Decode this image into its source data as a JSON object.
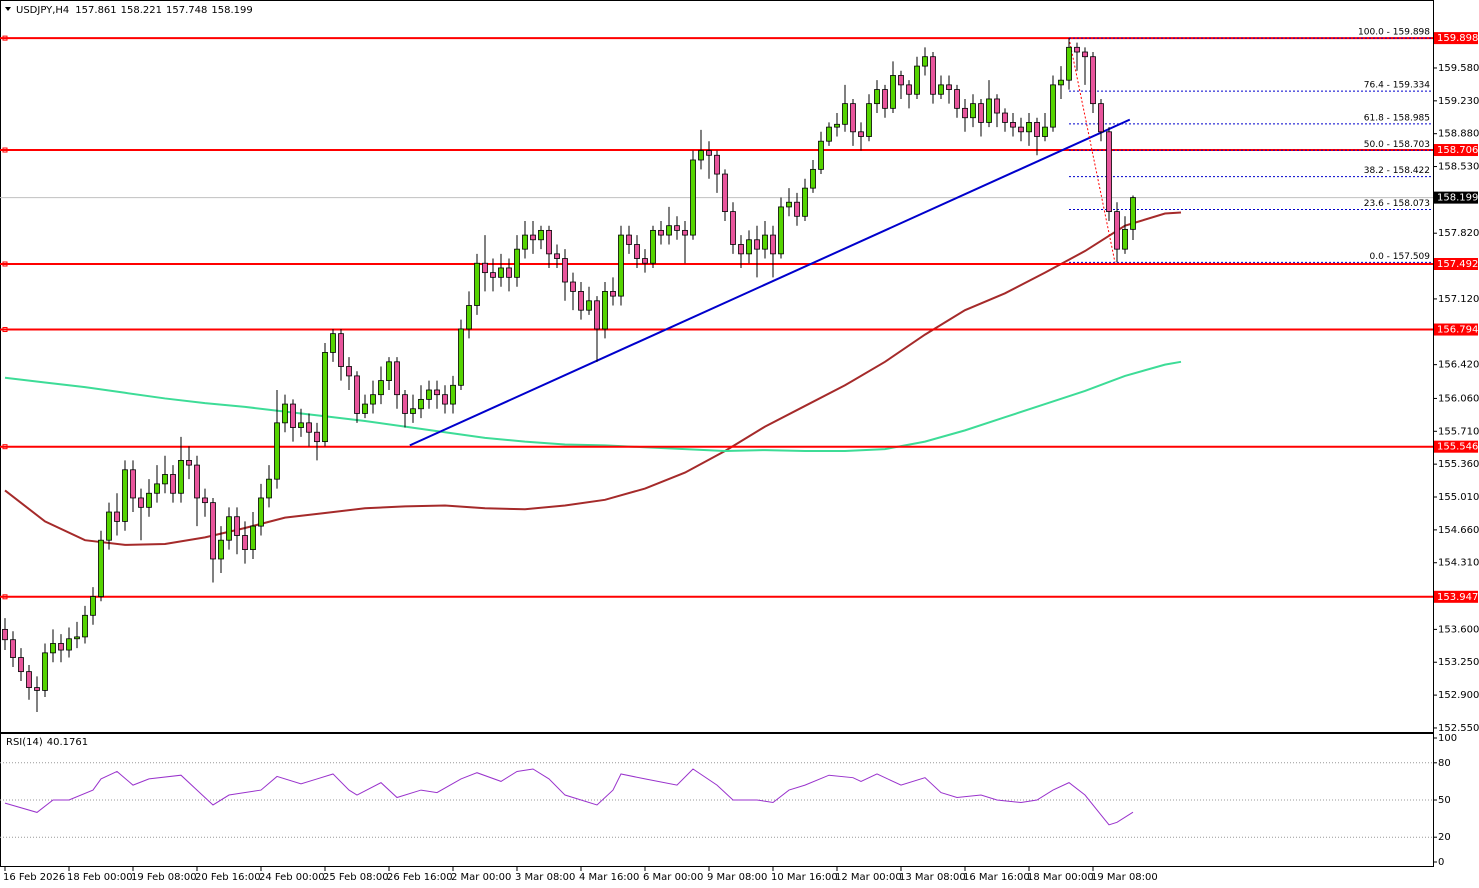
{
  "chart_data": {
    "type": "candlestick",
    "title": "USDJPY,H4",
    "bull_color": "#55d400",
    "bear_color": "#e8559c",
    "open": [
      153.6,
      153.49,
      153.3,
      153.15,
      152.98,
      152.95,
      153.35,
      153.45,
      153.38,
      153.5,
      153.52,
      153.75,
      153.95,
      154.55,
      154.85,
      154.75,
      155.3,
      155.0,
      154.9,
      155.05,
      155.15,
      155.25,
      155.05,
      155.4,
      155.35,
      155.0,
      154.95,
      154.35,
      154.55,
      154.8,
      154.6,
      154.45,
      154.7,
      155.0,
      155.2,
      155.8,
      156.0,
      155.75,
      155.8,
      155.7,
      155.6,
      156.55,
      156.75,
      156.4,
      156.3,
      155.9,
      156.0,
      156.1,
      156.25,
      156.45,
      156.1,
      155.9,
      155.95,
      156.05,
      156.15,
      156.1,
      156.0,
      156.2,
      156.8,
      157.05,
      157.5,
      157.4,
      157.35,
      157.45,
      157.35,
      157.65,
      157.8,
      157.75,
      157.85,
      157.6,
      157.55,
      157.3,
      157.2,
      157.0,
      157.1,
      156.8,
      157.2,
      157.15,
      157.8,
      157.7,
      157.55,
      157.5,
      157.85,
      157.8,
      157.9,
      157.85,
      157.8,
      158.6,
      158.7,
      158.65,
      158.45,
      158.05,
      157.7,
      157.6,
      157.75,
      157.65,
      157.8,
      157.6,
      158.1,
      158.15,
      158.0,
      158.3,
      158.5,
      158.8,
      158.95,
      158.98,
      159.2,
      158.9,
      158.85,
      159.2,
      159.35,
      159.15,
      159.5,
      159.4,
      159.3,
      159.6,
      159.7,
      159.3,
      159.4,
      159.35,
      159.15,
      159.05,
      159.2,
      159.0,
      159.25,
      159.1,
      159.0,
      158.95,
      158.9,
      159.0,
      158.85,
      158.95,
      159.4,
      159.45,
      159.8,
      159.75,
      159.7,
      159.2,
      158.9,
      158.05,
      157.65,
      157.861
    ],
    "high": [
      153.72,
      153.58,
      153.4,
      153.22,
      153.1,
      153.45,
      153.6,
      153.55,
      153.62,
      153.68,
      153.85,
      154.05,
      154.65,
      154.95,
      155.05,
      155.4,
      155.4,
      155.1,
      155.2,
      155.35,
      155.45,
      155.35,
      155.65,
      155.55,
      155.45,
      155.1,
      155.0,
      154.7,
      154.9,
      154.9,
      154.75,
      154.85,
      155.15,
      155.35,
      156.15,
      156.1,
      156.05,
      155.95,
      155.9,
      155.8,
      156.65,
      156.8,
      156.8,
      156.5,
      156.35,
      156.1,
      156.25,
      156.4,
      156.5,
      156.5,
      156.15,
      156.1,
      156.2,
      156.25,
      156.25,
      156.2,
      156.3,
      156.9,
      157.2,
      157.6,
      157.8,
      157.55,
      157.6,
      157.55,
      157.8,
      157.95,
      157.95,
      157.9,
      157.9,
      157.7,
      157.65,
      157.4,
      157.3,
      157.25,
      157.15,
      157.3,
      157.35,
      157.9,
      157.9,
      157.8,
      157.65,
      157.9,
      157.95,
      158.1,
      158.0,
      157.95,
      158.7,
      158.92,
      158.8,
      158.7,
      158.5,
      158.15,
      157.8,
      157.85,
      157.9,
      157.95,
      157.9,
      158.2,
      158.3,
      158.25,
      158.4,
      158.6,
      158.9,
      159.0,
      159.1,
      159.4,
      159.25,
      159.0,
      159.3,
      159.45,
      159.4,
      159.65,
      159.55,
      159.45,
      159.7,
      159.8,
      159.75,
      159.5,
      159.5,
      159.4,
      159.25,
      159.3,
      159.25,
      159.45,
      159.3,
      159.15,
      159.1,
      159.05,
      159.1,
      159.05,
      159.1,
      159.5,
      159.6,
      159.898,
      159.85,
      159.8,
      159.75,
      159.25,
      158.95,
      158.15,
      158.0,
      158.221
    ],
    "low": [
      153.38,
      153.2,
      153.05,
      152.85,
      152.72,
      152.88,
      153.25,
      153.25,
      153.3,
      153.4,
      153.45,
      153.65,
      153.9,
      154.45,
      154.6,
      154.65,
      154.85,
      154.55,
      154.8,
      154.95,
      155.05,
      154.95,
      154.95,
      155.2,
      154.7,
      154.8,
      154.1,
      154.2,
      154.45,
      154.4,
      154.3,
      154.35,
      154.6,
      154.9,
      155.1,
      155.7,
      155.6,
      155.65,
      155.55,
      155.4,
      155.55,
      156.45,
      156.25,
      156.15,
      155.8,
      155.85,
      155.9,
      156.0,
      156.15,
      155.95,
      155.75,
      155.8,
      155.85,
      155.95,
      155.95,
      155.9,
      155.9,
      156.15,
      156.7,
      156.95,
      157.2,
      157.2,
      157.25,
      157.2,
      157.25,
      157.55,
      157.6,
      157.65,
      157.45,
      157.45,
      157.1,
      157.0,
      156.9,
      156.95,
      156.45,
      156.7,
      157.05,
      157.05,
      157.6,
      157.45,
      157.4,
      157.45,
      157.7,
      157.7,
      157.75,
      157.5,
      157.75,
      158.5,
      158.4,
      158.25,
      157.95,
      157.6,
      157.45,
      157.5,
      157.35,
      157.55,
      157.35,
      157.55,
      158.0,
      157.9,
      157.95,
      158.25,
      158.45,
      158.75,
      158.85,
      158.9,
      158.75,
      158.7,
      158.8,
      159.1,
      159.05,
      159.1,
      159.25,
      159.15,
      159.25,
      159.5,
      159.2,
      159.25,
      159.2,
      159.05,
      158.9,
      158.95,
      158.85,
      158.95,
      158.95,
      158.9,
      158.85,
      158.8,
      158.75,
      158.65,
      158.8,
      158.9,
      159.25,
      159.35,
      159.55,
      159.4,
      159.1,
      158.8,
      157.95,
      157.509,
      157.6,
      157.748
    ],
    "close": [
      153.49,
      153.3,
      153.15,
      152.98,
      152.95,
      153.35,
      153.45,
      153.38,
      153.5,
      153.52,
      153.75,
      153.95,
      154.55,
      154.85,
      154.75,
      155.3,
      155.0,
      154.9,
      155.05,
      155.15,
      155.25,
      155.05,
      155.4,
      155.35,
      155.0,
      154.95,
      154.35,
      154.55,
      154.8,
      154.6,
      154.45,
      154.7,
      155.0,
      155.2,
      155.8,
      156.0,
      155.75,
      155.8,
      155.7,
      155.6,
      156.55,
      156.75,
      156.4,
      156.3,
      155.9,
      156.0,
      156.1,
      156.25,
      156.45,
      156.1,
      155.9,
      155.95,
      156.05,
      156.15,
      156.1,
      156.0,
      156.2,
      156.8,
      157.05,
      157.5,
      157.4,
      157.35,
      157.45,
      157.35,
      157.65,
      157.8,
      157.75,
      157.85,
      157.6,
      157.55,
      157.3,
      157.2,
      157.0,
      157.1,
      156.8,
      157.2,
      157.15,
      157.8,
      157.7,
      157.55,
      157.5,
      157.85,
      157.8,
      157.9,
      157.85,
      157.8,
      158.6,
      158.7,
      158.65,
      158.45,
      158.05,
      157.7,
      157.6,
      157.75,
      157.65,
      157.8,
      157.6,
      158.1,
      158.15,
      158.0,
      158.3,
      158.5,
      158.8,
      158.95,
      158.98,
      159.2,
      158.9,
      158.85,
      159.2,
      159.35,
      159.15,
      159.5,
      159.4,
      159.3,
      159.6,
      159.7,
      159.3,
      159.4,
      159.35,
      159.15,
      159.05,
      159.2,
      159.0,
      159.25,
      159.1,
      159.0,
      158.95,
      158.9,
      159.0,
      158.85,
      158.95,
      159.4,
      159.45,
      159.8,
      159.75,
      159.7,
      159.2,
      158.9,
      158.05,
      157.65,
      157.861,
      158.199
    ],
    "xlim": [
      -0.625,
      178.5
    ],
    "xticks": [
      {
        "value": 0,
        "label": "16 Feb 2026"
      },
      {
        "value": 8,
        "label": "18 Feb 00:00"
      },
      {
        "value": 16,
        "label": "19 Feb 08:00"
      },
      {
        "value": 24,
        "label": "20 Feb 16:00"
      },
      {
        "value": 32,
        "label": "24 Feb 00:00"
      },
      {
        "value": 40,
        "label": "25 Feb 08:00"
      },
      {
        "value": 48,
        "label": "26 Feb 16:00"
      },
      {
        "value": 56,
        "label": "2 Mar 00:00"
      },
      {
        "value": 64,
        "label": "3 Mar 08:00"
      },
      {
        "value": 72,
        "label": "4 Mar 16:00"
      },
      {
        "value": 80,
        "label": "6 Mar 00:00"
      },
      {
        "value": 88,
        "label": "9 Mar 08:00"
      },
      {
        "value": 96,
        "label": "10 Mar 16:00"
      },
      {
        "value": 104,
        "label": "12 Mar 00:00"
      },
      {
        "value": 112,
        "label": "13 Mar 08:00"
      },
      {
        "value": 120,
        "label": "16 Mar 16:00"
      },
      {
        "value": 128,
        "label": "18 Mar 00:00"
      },
      {
        "value": 136,
        "label": "19 Mar 08:00"
      }
    ],
    "ylim": [
      152.507,
      160.304
    ],
    "yticks": [
      {
        "value": 159.58,
        "label": "159.580"
      },
      {
        "value": 159.23,
        "label": "159.230"
      },
      {
        "value": 158.88,
        "label": "158.880"
      },
      {
        "value": 158.53,
        "label": "158.530"
      },
      {
        "value": 157.82,
        "label": "157.820"
      },
      {
        "value": 157.12,
        "label": "157.120"
      },
      {
        "value": 156.42,
        "label": "156.420"
      },
      {
        "value": 156.06,
        "label": "156.060"
      },
      {
        "value": 155.71,
        "label": "155.710"
      },
      {
        "value": 155.36,
        "label": "155.360"
      },
      {
        "value": 155.01,
        "label": "155.010"
      },
      {
        "value": 154.66,
        "label": "154.660"
      },
      {
        "value": 154.31,
        "label": "154.310"
      },
      {
        "value": 153.6,
        "label": "153.600"
      },
      {
        "value": 153.25,
        "label": "153.250"
      },
      {
        "value": 152.9,
        "label": "152.900"
      },
      {
        "value": 152.55,
        "label": "152.550"
      }
    ],
    "levels": {
      "color": "#ff0000",
      "values": [
        159.898,
        158.706,
        157.492,
        156.794,
        155.546,
        153.947
      ]
    },
    "series": [
      {
        "color": "#a52a2a",
        "x": [
          0,
          5,
          10,
          15,
          20,
          25,
          30,
          35,
          40,
          45,
          50,
          55,
          60,
          65,
          70,
          75,
          80,
          85,
          90,
          95,
          100,
          105,
          110,
          115,
          120,
          125,
          130,
          135,
          140,
          145,
          147
        ],
        "values": [
          155.08,
          154.75,
          154.55,
          154.5,
          154.51,
          154.58,
          154.68,
          154.79,
          154.84,
          154.89,
          154.91,
          154.92,
          154.89,
          154.88,
          154.92,
          154.98,
          155.1,
          155.27,
          155.5,
          155.76,
          155.98,
          156.2,
          156.45,
          156.74,
          157.0,
          157.18,
          157.4,
          157.63,
          157.9,
          158.03,
          158.04
        ]
      },
      {
        "color": "#3ddc97",
        "x": [
          0,
          5,
          10,
          15,
          20,
          25,
          30,
          35,
          40,
          45,
          50,
          55,
          60,
          65,
          70,
          75,
          80,
          85,
          90,
          95,
          100,
          105,
          110,
          115,
          120,
          125,
          130,
          135,
          140,
          145,
          147
        ],
        "values": [
          156.28,
          156.23,
          156.18,
          156.12,
          156.06,
          156.01,
          155.97,
          155.92,
          155.87,
          155.82,
          155.76,
          155.7,
          155.64,
          155.6,
          155.57,
          155.56,
          155.54,
          155.52,
          155.5,
          155.51,
          155.5,
          155.5,
          155.52,
          155.6,
          155.72,
          155.86,
          156.0,
          156.14,
          156.3,
          156.42,
          156.45
        ]
      }
    ],
    "trendline": {
      "color": "#0000cc",
      "x": [
        50.6,
        140.6
      ],
      "values": [
        155.56,
        159.03
      ]
    },
    "fibonacci": {
      "color": "#ff0000",
      "level_color": "#0000cc",
      "x": [
        133,
        138.75
      ],
      "values": [
        159.898,
        157.509
      ],
      "levels": [
        {
          "value": 159.898,
          "label": "100.0 - 159.898"
        },
        {
          "value": 159.334,
          "label": "76.4 - 159.334"
        },
        {
          "value": 158.985,
          "label": "61.8 - 158.985"
        },
        {
          "value": 158.703,
          "label": "50.0 - 158.703"
        },
        {
          "value": 158.422,
          "label": "38.2 - 158.422"
        },
        {
          "value": 158.073,
          "label": "23.6 - 158.073"
        },
        {
          "value": 157.509,
          "label": "0.0 - 157.509"
        }
      ]
    },
    "rsi": {
      "title": "RSI(14)",
      "color": "#9932cc",
      "ylim": [
        0,
        100
      ],
      "yticks": [
        100,
        80,
        50,
        20,
        0
      ],
      "levels": [
        80,
        50,
        20
      ],
      "x": [
        0,
        4,
        6,
        8,
        11,
        12,
        14,
        16,
        18,
        22,
        24,
        26,
        28,
        32,
        34,
        37,
        39,
        41,
        43,
        44,
        47,
        49,
        52,
        54,
        57,
        59,
        62,
        64,
        66,
        68,
        70,
        74,
        76,
        77,
        80,
        84,
        86,
        89,
        91,
        94,
        96,
        98,
        100,
        103,
        106,
        107,
        109,
        112,
        115,
        117,
        119,
        122,
        124,
        127,
        129,
        131,
        133,
        135,
        137,
        138,
        139,
        141
      ],
      "values": [
        47.5,
        40,
        50,
        50,
        58,
        67,
        73,
        62,
        67,
        70,
        58,
        46,
        54,
        58,
        69,
        63,
        67,
        71,
        58,
        54,
        64,
        52,
        58,
        56,
        67,
        72,
        65,
        73,
        75,
        67,
        54,
        46,
        58,
        71,
        67,
        62,
        75,
        62,
        50,
        50,
        48,
        58,
        62,
        70,
        68,
        65,
        71,
        62,
        68,
        56,
        52,
        54,
        50,
        48,
        50,
        58,
        64,
        54,
        38,
        30,
        32,
        40.1761
      ]
    }
  }
}
